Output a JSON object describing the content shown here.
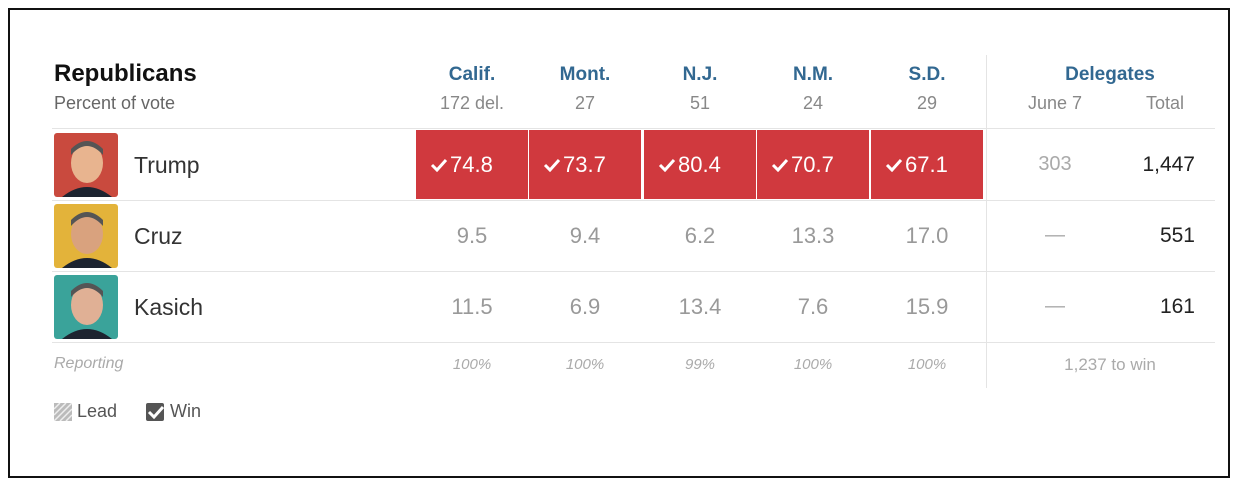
{
  "header": {
    "title": "Republicans",
    "subtitle": "Percent of vote"
  },
  "states": [
    {
      "name": "Calif.",
      "delegates": "172 del."
    },
    {
      "name": "Mont.",
      "delegates": "27"
    },
    {
      "name": "N.J.",
      "delegates": "51"
    },
    {
      "name": "N.M.",
      "delegates": "24"
    },
    {
      "name": "S.D.",
      "delegates": "29"
    }
  ],
  "delegates_header": {
    "title": "Delegates",
    "columns": [
      "June 7",
      "Total"
    ]
  },
  "rows": [
    {
      "name": "Trump",
      "values": [
        "74.8",
        "73.7",
        "80.4",
        "70.7",
        "67.1"
      ],
      "won": [
        true,
        true,
        true,
        true,
        true
      ],
      "june7": "303",
      "total": "1,447"
    },
    {
      "name": "Cruz",
      "values": [
        "9.5",
        "9.4",
        "6.2",
        "13.3",
        "17.0"
      ],
      "won": [
        false,
        false,
        false,
        false,
        false
      ],
      "june7": "—",
      "total": "551"
    },
    {
      "name": "Kasich",
      "values": [
        "11.5",
        "6.9",
        "13.4",
        "7.6",
        "15.9"
      ],
      "won": [
        false,
        false,
        false,
        false,
        false
      ],
      "june7": "—",
      "total": "161"
    }
  ],
  "reporting": {
    "label": "Reporting",
    "values": [
      "100%",
      "100%",
      "99%",
      "100%",
      "100%"
    ],
    "note": "1,237 to win"
  },
  "legend": [
    "Lead",
    "Win"
  ]
}
